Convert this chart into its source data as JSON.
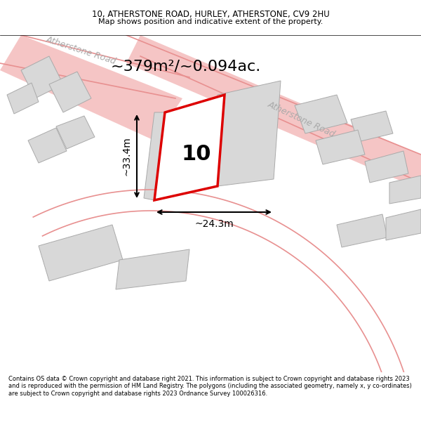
{
  "title_line1": "10, ATHERSTONE ROAD, HURLEY, ATHERSTONE, CV9 2HU",
  "title_line2": "Map shows position and indicative extent of the property.",
  "area_text": "~379m²/~0.094ac.",
  "label_number": "10",
  "dim_width": "~24.3m",
  "dim_height": "~33.4m",
  "road_label1": "Atherstone Road",
  "road_label2": "Atherstone Road",
  "background_color": "#f5f5f5",
  "map_bg": "#f8f8f8",
  "road_color_light": "#f5c5c5",
  "road_outline": "#e08080",
  "building_fill": "#d8d8d8",
  "building_edge": "#aaaaaa",
  "highlight_fill": "#ffffff",
  "highlight_edge": "#dd0000",
  "footnote": "Contains OS data © Crown copyright and database right 2021. This information is subject to Crown copyright and database rights 2023 and is reproduced with the permission of HM Land Registry. The polygons (including the associated geometry, namely x, y co-ordinates) are subject to Crown copyright and database rights 2023 Ordnance Survey 100026316."
}
